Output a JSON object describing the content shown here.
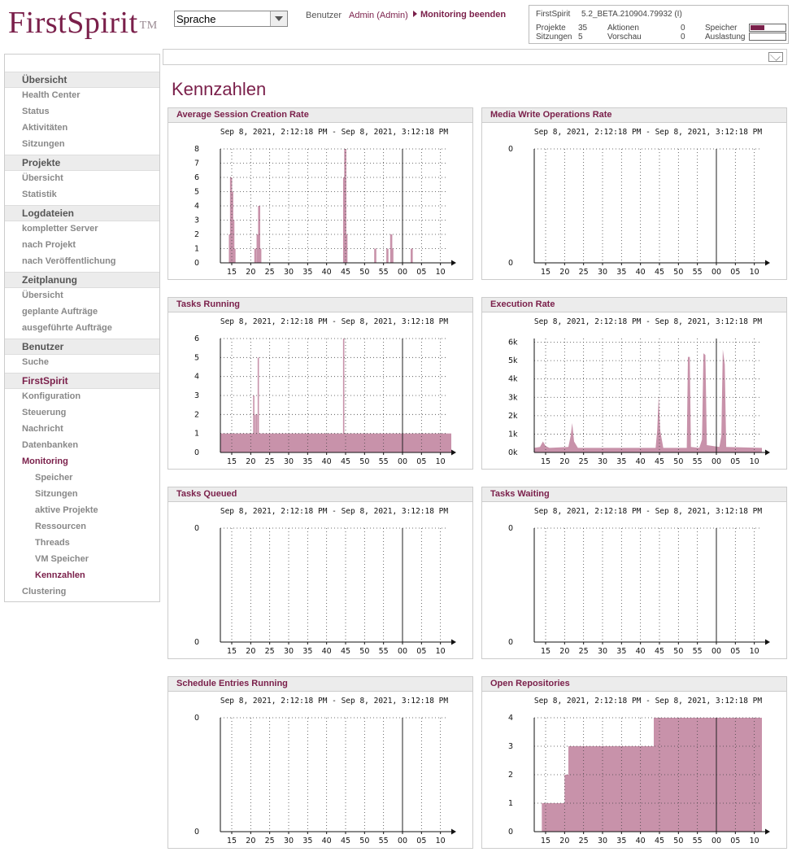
{
  "header": {
    "logo": "FirstSpirit",
    "logo_tm": "TM",
    "language_select": "Sprache",
    "benutzer": "Benutzer",
    "admin": "Admin (Admin)",
    "monitoring_end": "Monitoring beenden",
    "info": {
      "product": "FirstSpirit",
      "version": "5.2_BETA.210904.79932 (I)",
      "projekte_label": "Projekte",
      "projekte_value": "35",
      "sitzungen_label": "Sitzungen",
      "sitzungen_value": "5",
      "aktionen_label": "Aktionen",
      "aktionen_value": "0",
      "vorschau_label": "Vorschau",
      "vorschau_value": "0",
      "speicher_label": "Speicher",
      "speicher_level": 0.4,
      "auslastung_label": "Auslastung",
      "auslastung_level": 0.0
    }
  },
  "sidebar": {
    "sections": [
      {
        "label": "Übersicht",
        "items": [
          {
            "label": "Health Center"
          },
          {
            "label": "Status"
          },
          {
            "label": "Aktivitäten"
          },
          {
            "label": "Sitzungen"
          }
        ]
      },
      {
        "label": "Projekte",
        "items": [
          {
            "label": "Übersicht"
          },
          {
            "label": "Statistik"
          }
        ]
      },
      {
        "label": "Logdateien",
        "items": [
          {
            "label": "kompletter Server"
          },
          {
            "label": "nach Projekt"
          },
          {
            "label": "nach Veröffentlichung"
          }
        ]
      },
      {
        "label": "Zeitplanung",
        "items": [
          {
            "label": "Übersicht"
          },
          {
            "label": "geplante Aufträge"
          },
          {
            "label": "ausgeführte Aufträge"
          }
        ]
      },
      {
        "label": "Benutzer",
        "items": [
          {
            "label": "Suche"
          }
        ]
      },
      {
        "label": "FirstSpirit",
        "items": [
          {
            "label": "Konfiguration"
          },
          {
            "label": "Steuerung"
          },
          {
            "label": "Nachricht"
          },
          {
            "label": "Datenbanken"
          },
          {
            "label": "Monitoring"
          },
          {
            "label": "Speicher"
          },
          {
            "label": "Sitzungen"
          },
          {
            "label": "aktive Projekte"
          },
          {
            "label": "Ressourcen"
          },
          {
            "label": "Threads"
          },
          {
            "label": "VM Speicher"
          },
          {
            "label": "Kennzahlen"
          },
          {
            "label": "Clustering"
          }
        ]
      }
    ]
  },
  "main": {
    "title": "Kennzahlen"
  },
  "chart_data": [
    {
      "title": "Average Session Creation Rate",
      "type": "bar",
      "time_range": "Sep 8, 2021, 2:12:18 PM - Sep 8, 2021, 3:12:18 PM",
      "x_ticks": [
        "15",
        "20",
        "25",
        "30",
        "35",
        "40",
        "45",
        "50",
        "55",
        "00",
        "05",
        "10"
      ],
      "y_ticks": [
        "0",
        "1",
        "2",
        "3",
        "4",
        "5",
        "6",
        "7",
        "8"
      ],
      "ylim": [
        0,
        8
      ],
      "points": [
        [
          14.5,
          2
        ],
        [
          14.8,
          6
        ],
        [
          15.1,
          5
        ],
        [
          15.4,
          3
        ],
        [
          15.7,
          1
        ],
        [
          21.2,
          1
        ],
        [
          21.8,
          2
        ],
        [
          22.2,
          4
        ],
        [
          22.5,
          1
        ],
        [
          44.6,
          6
        ],
        [
          44.9,
          8
        ],
        [
          45.2,
          2
        ],
        [
          52.8,
          1
        ],
        [
          56.0,
          1
        ],
        [
          57.0,
          2
        ],
        [
          57.3,
          1
        ],
        [
          62.4,
          1
        ]
      ]
    },
    {
      "title": "Media Write Operations Rate",
      "type": "bar",
      "time_range": "Sep 8, 2021, 2:12:18 PM - Sep 8, 2021, 3:12:18 PM",
      "x_ticks": [
        "15",
        "20",
        "25",
        "30",
        "35",
        "40",
        "45",
        "50",
        "55",
        "00",
        "05",
        "10"
      ],
      "y_ticks": [
        "0",
        "0"
      ],
      "ylim": [
        0,
        1
      ],
      "points": []
    },
    {
      "title": "Tasks Running",
      "type": "area",
      "time_range": "Sep 8, 2021, 2:12:18 PM - Sep 8, 2021, 3:12:18 PM",
      "x_ticks": [
        "15",
        "20",
        "25",
        "30",
        "35",
        "40",
        "45",
        "50",
        "55",
        "00",
        "05",
        "10"
      ],
      "y_ticks": [
        "0",
        "1",
        "2",
        "3",
        "4",
        "5",
        "6"
      ],
      "ylim": [
        0,
        6
      ],
      "baseline": 1,
      "points": [
        [
          20.8,
          3
        ],
        [
          21.2,
          2
        ],
        [
          21.6,
          2
        ],
        [
          22.0,
          5
        ],
        [
          44.5,
          6
        ]
      ]
    },
    {
      "title": "Execution Rate",
      "type": "area",
      "time_range": "Sep 8, 2021, 2:12:18 PM - Sep 8, 2021, 3:12:18 PM",
      "x_ticks": [
        "15",
        "20",
        "25",
        "30",
        "35",
        "40",
        "45",
        "50",
        "55",
        "00",
        "05",
        "10"
      ],
      "y_ticks": [
        "0k",
        "1k",
        "2k",
        "3k",
        "4k",
        "5k",
        "6k"
      ],
      "ylim": [
        0,
        6200
      ],
      "series": [
        [
          12,
          0.25
        ],
        [
          13.5,
          0.3
        ],
        [
          14.3,
          0.6
        ],
        [
          15,
          0.35
        ],
        [
          16,
          0.25
        ],
        [
          21,
          0.3
        ],
        [
          21.6,
          0.9
        ],
        [
          22,
          1.6
        ],
        [
          22.5,
          0.6
        ],
        [
          23.5,
          0.25
        ],
        [
          44,
          0.25
        ],
        [
          44.4,
          1.2
        ],
        [
          44.8,
          3.1
        ],
        [
          45.2,
          1.2
        ],
        [
          46,
          0.25
        ],
        [
          52.2,
          0.25
        ],
        [
          52.5,
          5.2
        ],
        [
          53,
          5.2
        ],
        [
          53.3,
          0.3
        ],
        [
          55.5,
          0.25
        ],
        [
          56.2,
          0.7
        ],
        [
          56.6,
          5.4
        ],
        [
          57.1,
          5.3
        ],
        [
          57.5,
          0.4
        ],
        [
          60.8,
          0.3
        ],
        [
          61.3,
          0.9
        ],
        [
          61.7,
          5.6
        ],
        [
          62.2,
          4.8
        ],
        [
          62.6,
          0.3
        ],
        [
          72,
          0.25
        ]
      ]
    },
    {
      "title": "Tasks Queued",
      "type": "bar",
      "time_range": "Sep 8, 2021, 2:12:18 PM - Sep 8, 2021, 3:12:18 PM",
      "x_ticks": [
        "15",
        "20",
        "25",
        "30",
        "35",
        "40",
        "45",
        "50",
        "55",
        "00",
        "05",
        "10"
      ],
      "y_ticks": [
        "0",
        "0"
      ],
      "ylim": [
        0,
        1
      ],
      "points": []
    },
    {
      "title": "Tasks Waiting",
      "type": "bar",
      "time_range": "Sep 8, 2021, 2:12:18 PM - Sep 8, 2021, 3:12:18 PM",
      "x_ticks": [
        "15",
        "20",
        "25",
        "30",
        "35",
        "40",
        "45",
        "50",
        "55",
        "00",
        "05",
        "10"
      ],
      "y_ticks": [
        "0",
        "0"
      ],
      "ylim": [
        0,
        1
      ],
      "points": []
    },
    {
      "title": "Schedule Entries Running",
      "type": "bar",
      "time_range": "Sep 8, 2021, 2:12:18 PM - Sep 8, 2021, 3:12:18 PM",
      "x_ticks": [
        "15",
        "20",
        "25",
        "30",
        "35",
        "40",
        "45",
        "50",
        "55",
        "00",
        "05",
        "10"
      ],
      "y_ticks": [
        "0",
        "0"
      ],
      "ylim": [
        0,
        1
      ],
      "points": []
    },
    {
      "title": "Open Repositories",
      "type": "area",
      "time_range": "Sep 8, 2021, 2:12:18 PM - Sep 8, 2021, 3:12:18 PM",
      "x_ticks": [
        "15",
        "20",
        "25",
        "30",
        "35",
        "40",
        "45",
        "50",
        "55",
        "00",
        "05",
        "10"
      ],
      "y_ticks": [
        "0",
        "1",
        "2",
        "3",
        "4"
      ],
      "ylim": [
        0,
        4
      ],
      "steps": [
        [
          14,
          1
        ],
        [
          20,
          2
        ],
        [
          21,
          3
        ],
        [
          43.5,
          4
        ],
        [
          72,
          4
        ]
      ]
    }
  ],
  "colors": {
    "accent": "#7a1f4a",
    "bar": "#c892aa"
  }
}
